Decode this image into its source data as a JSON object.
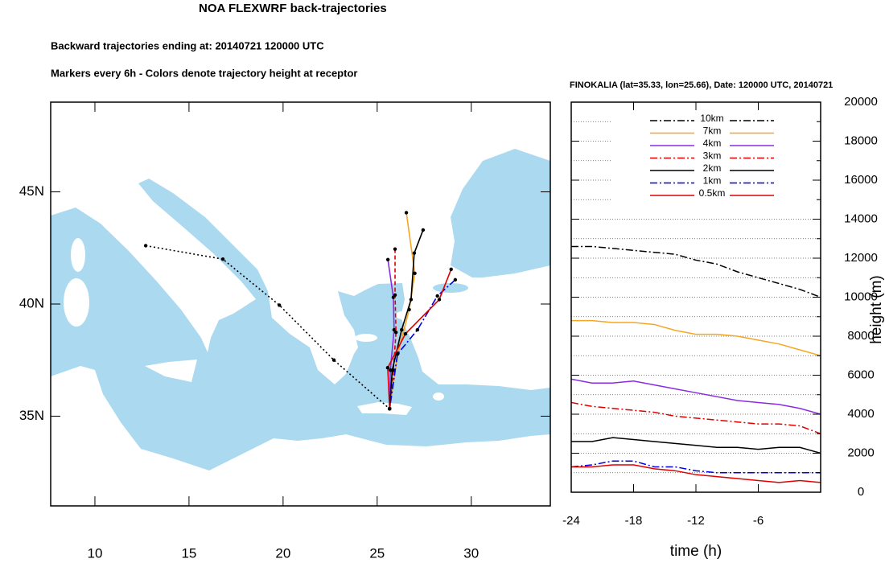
{
  "chart_data": [
    {
      "type": "map",
      "title": "NOA FLEXWRF back-trajectories",
      "subtitle": "Backward trajectories ending at: 20140721  120000 UTC",
      "annotation": "Markers every 6h - Colors denote trajectory height at receptor",
      "xlim": [
        7.65,
        34.2
      ],
      "ylim": [
        31,
        49
      ],
      "xticks": [
        10,
        15,
        20,
        25,
        30
      ],
      "yticks": [
        {
          "value": 35,
          "label": "35N"
        },
        {
          "value": 40,
          "label": "40N"
        },
        {
          "value": 45,
          "label": "45N"
        }
      ],
      "series": [
        {
          "color": "#000000",
          "dash": "dotted",
          "x": [
            12.7,
            16.8,
            19.8,
            22.7,
            25.66
          ],
          "y": [
            42.6,
            42.0,
            39.95,
            37.5,
            35.33
          ]
        },
        {
          "color": "#f5a623",
          "dash": "solid",
          "x": [
            26.55,
            27.0,
            26.7,
            26.1,
            25.66
          ],
          "y": [
            44.07,
            41.37,
            39.75,
            37.8,
            35.33
          ]
        },
        {
          "color": "#8a2be2",
          "dash": "solid",
          "x": [
            25.57,
            25.86,
            25.9,
            25.7,
            25.66
          ],
          "y": [
            41.98,
            40.3,
            38.85,
            37.05,
            35.33
          ]
        },
        {
          "color": "#e00000",
          "dash": "dashed",
          "x": [
            25.95,
            25.95,
            26.0,
            25.86,
            25.66
          ],
          "y": [
            42.45,
            40.4,
            38.74,
            37.05,
            35.33
          ]
        },
        {
          "color": "#000000",
          "dash": "solid",
          "x": [
            27.44,
            26.97,
            26.8,
            26.3,
            25.8,
            25.66
          ],
          "y": [
            43.3,
            42.27,
            40.2,
            38.85,
            37.05,
            35.33
          ]
        },
        {
          "color": "#0000e0",
          "dash": "dashdot",
          "x": [
            29.15,
            28.2,
            27.14,
            26.08,
            25.66
          ],
          "y": [
            41.08,
            40.36,
            38.85,
            37.77,
            35.33
          ]
        },
        {
          "color": "#e00000",
          "dash": "solid",
          "x": [
            28.93,
            28.3,
            26.5,
            25.56,
            25.66
          ],
          "y": [
            41.55,
            40.2,
            38.67,
            37.16,
            35.33
          ]
        }
      ]
    },
    {
      "type": "line",
      "title": "FINOKALIA (lat=35.33,  lon=25.66), Date: 120000 UTC, 20140721",
      "xlabel": "time (h)",
      "ylabel": "height (m)",
      "x": [
        -24,
        -22,
        -20,
        -18,
        -16,
        -14,
        -12,
        -10,
        -8,
        -6,
        -4,
        -2,
        0
      ],
      "xlim": [
        -24,
        0
      ],
      "xticks": [
        -24,
        -18,
        -12,
        -6
      ],
      "ylim": [
        0,
        20000
      ],
      "yticks": [
        0,
        2000,
        4000,
        6000,
        8000,
        10000,
        12000,
        14000,
        16000,
        18000,
        20000
      ],
      "yminorticks": [
        1000,
        3000,
        5000,
        7000,
        9000,
        11000,
        13000,
        15000,
        17000,
        19000
      ],
      "grid": true,
      "legend": "top",
      "series": [
        {
          "name": "10km",
          "color": "#000000",
          "dash": "dashdot",
          "values": [
            12600,
            12600,
            12500,
            12400,
            12300,
            12200,
            11900,
            11700,
            11300,
            11000,
            10700,
            10400,
            10000
          ]
        },
        {
          "name": "7km",
          "color": "#f5a623",
          "dash": "solid",
          "values": [
            8800,
            8800,
            8700,
            8700,
            8600,
            8300,
            8100,
            8100,
            8000,
            7800,
            7600,
            7300,
            7000
          ]
        },
        {
          "name": "4km",
          "color": "#8a2be2",
          "dash": "solid",
          "values": [
            5800,
            5600,
            5600,
            5700,
            5500,
            5300,
            5100,
            4900,
            4700,
            4600,
            4500,
            4300,
            4000
          ]
        },
        {
          "name": "3km",
          "color": "#e00000",
          "dash": "dashdot",
          "values": [
            4600,
            4400,
            4300,
            4200,
            4100,
            3900,
            3800,
            3700,
            3600,
            3500,
            3500,
            3400,
            3000
          ]
        },
        {
          "name": "2km",
          "color": "#000000",
          "dash": "solid",
          "values": [
            2600,
            2600,
            2800,
            2700,
            2600,
            2500,
            2400,
            2300,
            2300,
            2200,
            2300,
            2300,
            2000
          ]
        },
        {
          "name": "1km",
          "color": "#0000e0",
          "dash": "dashdot",
          "values": [
            1300,
            1400,
            1600,
            1600,
            1300,
            1300,
            1100,
            1000,
            1000,
            1000,
            1000,
            1000,
            1000
          ]
        },
        {
          "name": "0.5km",
          "color": "#e00000",
          "dash": "solid",
          "values": [
            1300,
            1300,
            1400,
            1400,
            1200,
            1100,
            900,
            800,
            700,
            600,
            500,
            600,
            500
          ]
        }
      ]
    }
  ]
}
